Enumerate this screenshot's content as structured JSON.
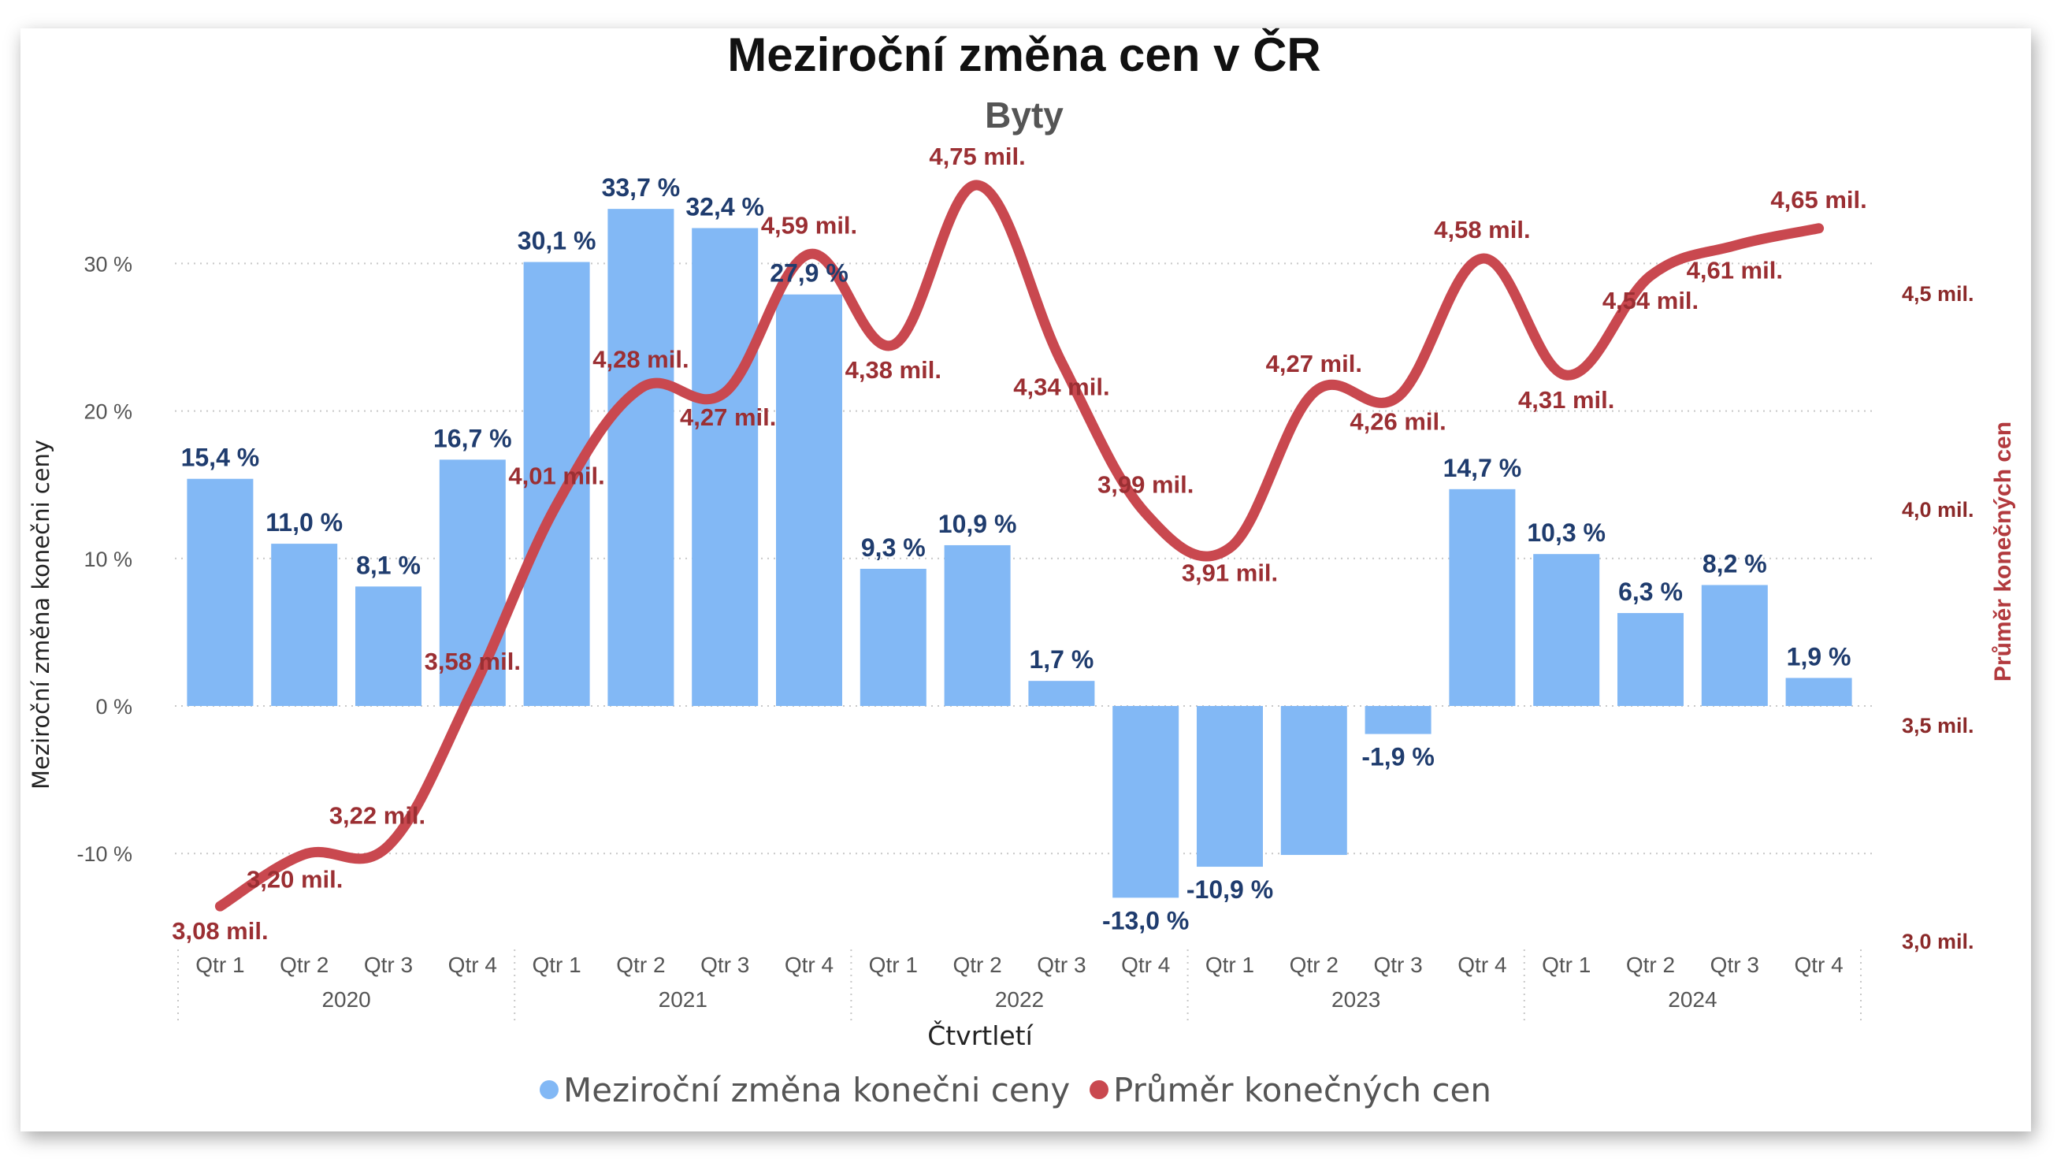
{
  "chart_data": {
    "type": "bar+line",
    "title": "Meziroční změna cen v ČR",
    "subtitle": "Byty",
    "xlabel": "Čtvrtletí",
    "ylabel": "Meziroční změna konečni ceny",
    "y2label": "Průměr konečných cen",
    "categories": [
      "Qtr 1",
      "Qtr 2",
      "Qtr 3",
      "Qtr 4",
      "Qtr 1",
      "Qtr 2",
      "Qtr 3",
      "Qtr 4",
      "Qtr 1",
      "Qtr 2",
      "Qtr 3",
      "Qtr 4",
      "Qtr 1",
      "Qtr 2",
      "Qtr 3",
      "Qtr 4",
      "Qtr 1",
      "Qtr 2",
      "Qtr 3",
      "Qtr 4"
    ],
    "years": [
      "2020",
      "2021",
      "2022",
      "2023",
      "2024"
    ],
    "ylim": [
      -15,
      37
    ],
    "y2lim": [
      2.95,
      4.95
    ],
    "yticks": [
      {
        "value": 30,
        "label": "30 %"
      },
      {
        "value": 20,
        "label": "20 %"
      },
      {
        "value": 10,
        "label": "10 %"
      },
      {
        "value": 0,
        "label": "0 %"
      },
      {
        "value": -10,
        "label": "-10 %"
      }
    ],
    "y2ticks": [
      {
        "value": 4.5,
        "label": "4,5 mil."
      },
      {
        "value": 4.0,
        "label": "4,0 mil."
      },
      {
        "value": 3.5,
        "label": "3,5 mil."
      },
      {
        "value": 3.0,
        "label": "3,0 mil."
      }
    ],
    "series": [
      {
        "name": "Meziroční změna konečni ceny",
        "type": "bar",
        "color": "#82b8f5",
        "values": [
          15.4,
          11.0,
          8.1,
          16.7,
          30.1,
          33.7,
          32.4,
          27.9,
          9.3,
          10.9,
          1.7,
          -13.0,
          -10.9,
          -10.1,
          -1.9,
          14.7,
          10.3,
          6.3,
          8.2,
          1.9
        ],
        "labels": [
          "15,4 %",
          "11,0 %",
          "8,1 %",
          "16,7 %",
          "30,1 %",
          "33,7 %",
          "32,4 %",
          "27,9 %",
          "9,3 %",
          "10,9 %",
          "1,7 %",
          "-13,0 %",
          "-10,9 %",
          "",
          "-1,9 %",
          "14,7 %",
          "10,3 %",
          "6,3 %",
          "8,2 %",
          "1,9 %"
        ]
      },
      {
        "name": "Průměr konečných cen",
        "type": "line",
        "color": "#c9484f",
        "values": [
          3.08,
          3.2,
          3.22,
          3.58,
          4.01,
          4.28,
          4.27,
          4.59,
          4.38,
          4.75,
          4.34,
          3.99,
          3.91,
          4.27,
          4.26,
          4.58,
          4.31,
          4.54,
          4.61,
          4.65
        ],
        "labels": [
          "3,08 mil.",
          "3,20 mil.",
          "3,22 mil.",
          "3,58 mil.",
          "4,01 mil.",
          "4,28 mil.",
          "4,27 mil.",
          "4,59 mil.",
          "4,38 mil.",
          "4,75 mil.",
          "4,34 mil.",
          "3,99 mil.",
          "3,91 mil.",
          "4,27 mil.",
          "4,26 mil.",
          "4,58 mil.",
          "4,31 mil.",
          "4,54 mil.",
          "4,61 mil.",
          "4,65 mil."
        ]
      }
    ],
    "legend_position": "bottom-center",
    "grid": true
  }
}
